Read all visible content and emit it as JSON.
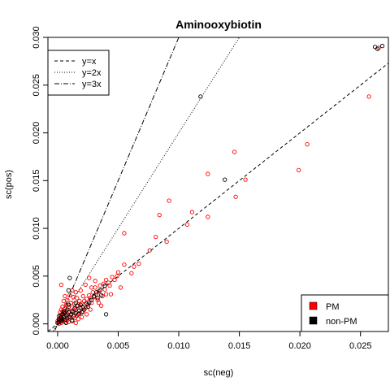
{
  "chart_data": {
    "type": "scatter",
    "title": "Aminooxybiotin",
    "xlabel": "sc(neg)",
    "ylabel": "sc(pos)",
    "xlim": [
      -0.0008,
      0.0273
    ],
    "ylim": [
      -0.0008,
      0.03
    ],
    "xticks": [
      0.0,
      0.005,
      0.01,
      0.015,
      0.02,
      0.025
    ],
    "xtick_labels": [
      "0.000",
      "0.005",
      "0.010",
      "0.015",
      "0.020",
      "0.025"
    ],
    "yticks": [
      0.0,
      0.005,
      0.01,
      0.015,
      0.02,
      0.025,
      0.03
    ],
    "ytick_labels": [
      "0.000",
      "0.005",
      "0.010",
      "0.015",
      "0.020",
      "0.025",
      "0.030"
    ],
    "reference_lines": [
      {
        "label": "y=x",
        "slope": 1,
        "dash": "dashed"
      },
      {
        "label": "y=2x",
        "slope": 2,
        "dash": "dotted"
      },
      {
        "label": "y=3x",
        "slope": 3,
        "dash": "dotdash"
      }
    ],
    "legend_lines_position": "top-left",
    "legend_points_position": "bottom-right",
    "series": [
      {
        "name": "PM",
        "color": "#ff0000",
        "points": [
          [
            0.0265,
            0.0289
          ],
          [
            0.0257,
            0.0238
          ],
          [
            0.0206,
            0.0188
          ],
          [
            0.0199,
            0.0161
          ],
          [
            0.0146,
            0.018
          ],
          [
            0.0155,
            0.0151
          ],
          [
            0.0147,
            0.0133
          ],
          [
            0.0124,
            0.0157
          ],
          [
            0.0124,
            0.0112
          ],
          [
            0.0111,
            0.0117
          ],
          [
            0.0107,
            0.0104
          ],
          [
            0.0092,
            0.0129
          ],
          [
            0.009,
            0.0086
          ],
          [
            0.0084,
            0.0114
          ],
          [
            0.0081,
            0.0091
          ],
          [
            0.0076,
            0.0077
          ],
          [
            0.0067,
            0.0063
          ],
          [
            0.0063,
            0.006
          ],
          [
            0.0061,
            0.0053
          ],
          [
            0.0055,
            0.0095
          ],
          [
            0.0055,
            0.0062
          ],
          [
            0.005,
            0.0054
          ],
          [
            0.0049,
            0.005
          ],
          [
            0.0047,
            0.0046
          ],
          [
            0.0045,
            0.0049
          ],
          [
            0.0043,
            0.004
          ],
          [
            0.0042,
            0.0043
          ],
          [
            0.004,
            0.0046
          ],
          [
            0.0039,
            0.0036
          ],
          [
            0.0038,
            0.0042
          ],
          [
            0.0037,
            0.0029
          ],
          [
            0.0035,
            0.004
          ],
          [
            0.0034,
            0.0034
          ],
          [
            0.0033,
            0.0025
          ],
          [
            0.0032,
            0.0031
          ],
          [
            0.0031,
            0.0038
          ],
          [
            0.003,
            0.0028
          ],
          [
            0.0029,
            0.0033
          ],
          [
            0.0028,
            0.0022
          ],
          [
            0.0027,
            0.0027
          ],
          [
            0.0026,
            0.0048
          ],
          [
            0.0026,
            0.003
          ],
          [
            0.0025,
            0.002
          ],
          [
            0.0024,
            0.0026
          ],
          [
            0.0023,
            0.0041
          ],
          [
            0.0023,
            0.0017
          ],
          [
            0.0022,
            0.0024
          ],
          [
            0.0021,
            0.0029
          ],
          [
            0.0021,
            0.0013
          ],
          [
            0.002,
            0.0021
          ],
          [
            0.0019,
            0.0035
          ],
          [
            0.0019,
            0.0016
          ],
          [
            0.0018,
            0.0024
          ],
          [
            0.0018,
            0.0011
          ],
          [
            0.0017,
            0.0019
          ],
          [
            0.0016,
            0.0027
          ],
          [
            0.0016,
            0.0009
          ],
          [
            0.0015,
            0.0015
          ],
          [
            0.0015,
            0.0033
          ],
          [
            0.0014,
            0.0021
          ],
          [
            0.0014,
            0.0006
          ],
          [
            0.0013,
            0.0012
          ],
          [
            0.0013,
            0.0028
          ],
          [
            0.0012,
            0.0017
          ],
          [
            0.0012,
            0.0004
          ],
          [
            0.0011,
            0.0009
          ],
          [
            0.0011,
            0.0022
          ],
          [
            0.001,
            0.0013
          ],
          [
            0.001,
            0.003
          ],
          [
            0.0009,
            0.0007
          ],
          [
            0.0009,
            0.0018
          ],
          [
            0.0008,
            0.001
          ],
          [
            0.0008,
            0.0025
          ],
          [
            0.0008,
            0.0004
          ],
          [
            0.0007,
            0.0014
          ],
          [
            0.0007,
            0.002
          ],
          [
            0.0006,
            0.0008
          ],
          [
            0.0006,
            0.0016
          ],
          [
            0.0006,
            0.0002
          ],
          [
            0.0005,
            0.0011
          ],
          [
            0.0005,
            0.0024
          ],
          [
            0.0005,
            0.0005
          ],
          [
            0.0004,
            0.0013
          ],
          [
            0.0004,
            0.0018
          ],
          [
            0.0004,
            0.0003
          ],
          [
            0.0003,
            0.0009
          ],
          [
            0.0003,
            0.0015
          ],
          [
            0.0003,
            0.0001
          ],
          [
            0.0002,
            0.0006
          ],
          [
            0.0002,
            0.0012
          ],
          [
            0.0002,
            0.0002
          ],
          [
            0.0001,
            0.0004
          ],
          [
            0.0001,
            0.0008
          ],
          [
            0.0001,
            0.0
          ],
          [
            0.0,
            0.0003
          ],
          [
            0.0,
            0.0001
          ],
          [
            0.0003,
            0.0041
          ],
          [
            0.0044,
            0.0031
          ],
          [
            0.0052,
            0.0038
          ],
          [
            0.0036,
            0.0019
          ],
          [
            0.0024,
            0.001
          ],
          [
            0.0028,
            0.0038
          ],
          [
            0.0017,
            0.0005
          ],
          [
            0.004,
            0.0031
          ],
          [
            0.0012,
            0.0035
          ],
          [
            0.0009,
            0.0002
          ],
          [
            0.0027,
            0.0015
          ],
          [
            0.002,
            0.0007
          ],
          [
            0.0034,
            0.0022
          ],
          [
            0.0006,
            0.0029
          ],
          [
            0.0015,
            0.0001
          ],
          [
            0.0031,
            0.0045
          ]
        ]
      },
      {
        "name": "non-PM",
        "color": "#000000",
        "points": [
          [
            0.0268,
            0.0291
          ],
          [
            0.0262,
            0.029
          ],
          [
            0.0264,
            0.0288
          ],
          [
            0.0118,
            0.0238
          ],
          [
            0.0138,
            0.0151
          ],
          [
            0.0039,
            0.004
          ],
          [
            0.004,
            0.001
          ],
          [
            0.001,
            0.0048
          ],
          [
            0.0009,
            0.0035
          ],
          [
            0.0035,
            0.0035
          ],
          [
            0.0032,
            0.0033
          ],
          [
            0.0036,
            0.003
          ],
          [
            0.0025,
            0.0018
          ],
          [
            0.0022,
            0.0015
          ],
          [
            0.003,
            0.0029
          ],
          [
            0.0028,
            0.0025
          ],
          [
            0.002,
            0.0012
          ],
          [
            0.0018,
            0.0014
          ],
          [
            0.0016,
            0.0019
          ],
          [
            0.0015,
            0.0011
          ],
          [
            0.0014,
            0.0016
          ],
          [
            0.0013,
            0.0008
          ],
          [
            0.0012,
            0.0013
          ],
          [
            0.0011,
            0.001
          ],
          [
            0.001,
            0.0007
          ],
          [
            0.0009,
            0.0012
          ],
          [
            0.0008,
            0.0006
          ],
          [
            0.0008,
            0.0015
          ],
          [
            0.0007,
            0.0009
          ],
          [
            0.0006,
            0.0011
          ],
          [
            0.0006,
            0.0004
          ],
          [
            0.0005,
            0.0007
          ],
          [
            0.0005,
            0.0013
          ],
          [
            0.0004,
            0.0005
          ],
          [
            0.0004,
            0.001
          ],
          [
            0.0003,
            0.0003
          ],
          [
            0.0003,
            0.0007
          ],
          [
            0.0002,
            0.0004
          ],
          [
            0.0002,
            0.0009
          ],
          [
            0.0001,
            0.0002
          ],
          [
            0.0001,
            0.0005
          ],
          [
            0.0,
            0.0001
          ],
          [
            0.0024,
            0.0021
          ],
          [
            0.0019,
            0.002
          ],
          [
            0.0017,
            0.001
          ],
          [
            0.0026,
            0.0022
          ],
          [
            0.0021,
            0.0017
          ],
          [
            0.0012,
            0.0003
          ],
          [
            0.0007,
            0.0001
          ],
          [
            0.0033,
            0.0027
          ],
          [
            0.0009,
            0.002
          ],
          [
            0.0015,
            0.0022
          ]
        ]
      }
    ]
  }
}
